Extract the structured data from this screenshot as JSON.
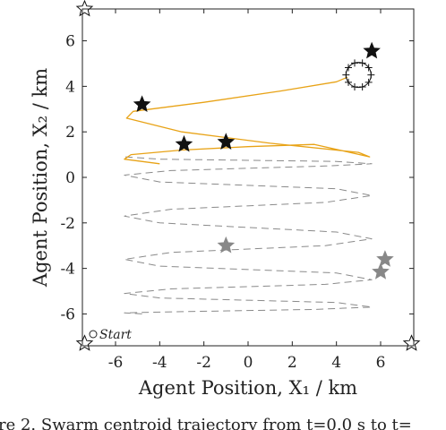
{
  "chart_data": {
    "type": "line",
    "xlabel": "Agent Position, X₁ / km",
    "ylabel": "Agent Position, X₂ / km",
    "xlim": [
      -7.5,
      7.5
    ],
    "ylim": [
      -7.4,
      7.4
    ],
    "xticks": [
      -6,
      -4,
      -2,
      0,
      2,
      4,
      6
    ],
    "yticks": [
      -6,
      -4,
      -2,
      0,
      2,
      4,
      6
    ],
    "grid": false,
    "start_label": "Start",
    "series": [
      {
        "style": "dashed-gray",
        "x": [
          -4.8,
          -5.6,
          -3.0,
          3.0,
          5.6,
          4.0,
          -4.0,
          -5.6,
          -3.5,
          3.5,
          5.6,
          4.0,
          -4.0,
          -5.6,
          -3.5,
          3.5,
          5.6,
          4.0,
          -4.0,
          -5.6,
          -3.5,
          3.5,
          5.6,
          4.0,
          -4.0,
          -5.6,
          -3.5,
          3.5,
          5.6,
          4.0,
          -4.0,
          -5.6
        ],
        "y": [
          -6.0,
          -5.95,
          -5.9,
          -5.8,
          -5.7,
          -5.5,
          -5.3,
          -5.1,
          -4.9,
          -4.7,
          -4.5,
          -4.2,
          -3.9,
          -3.6,
          -3.3,
          -3.0,
          -2.7,
          -2.4,
          -2.0,
          -1.7,
          -1.4,
          -1.1,
          -0.8,
          -0.5,
          -0.2,
          0.1,
          0.3,
          0.5,
          0.6,
          0.7,
          0.8,
          0.9
        ]
      },
      {
        "style": "solid-orange",
        "x": [
          -4.0,
          -5.6,
          -5.3,
          -3.0,
          0.0,
          3.0,
          5.5,
          5.0,
          1.0,
          -3.0,
          -5.5,
          -5.2,
          -2.0,
          1.5,
          4.0,
          4.5
        ],
        "y": [
          0.6,
          0.8,
          1.0,
          1.2,
          1.35,
          1.45,
          0.9,
          1.1,
          1.5,
          2.0,
          2.6,
          2.9,
          3.3,
          3.8,
          4.2,
          4.4
        ]
      }
    ],
    "agent_markers_black": [
      {
        "x": -4.8,
        "y": 3.2
      },
      {
        "x": -2.9,
        "y": 1.45
      },
      {
        "x": -1.0,
        "y": 1.55
      },
      {
        "x": 5.6,
        "y": 5.55
      }
    ],
    "agent_markers_gray": [
      {
        "x": -1.0,
        "y": -3.0
      },
      {
        "x": 6.2,
        "y": -3.6
      },
      {
        "x": 6.0,
        "y": -4.15
      }
    ],
    "agent_markers_hollow": [
      {
        "x": -7.4,
        "y": 7.4
      },
      {
        "x": -7.4,
        "y": -7.3
      },
      {
        "x": 7.4,
        "y": -7.3
      }
    ],
    "target_cluster_center": {
      "x": 5.0,
      "y": 4.5
    },
    "caption_fragment": "re 2.  Swarm centroid trajectory from t=0.0 s to t="
  }
}
